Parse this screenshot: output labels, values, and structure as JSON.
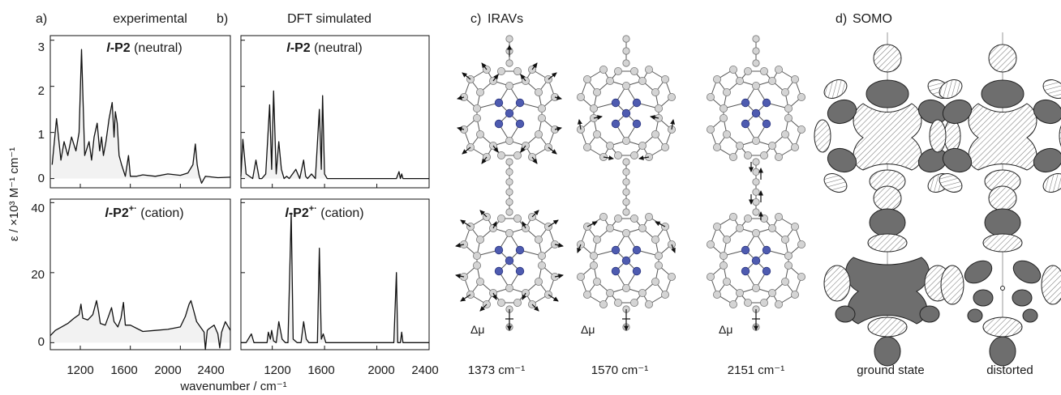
{
  "panels": {
    "a": {
      "letter": "a)",
      "title": "experimental"
    },
    "b": {
      "letter": "b)",
      "title": "DFT simulated"
    },
    "c": {
      "letter": "c)",
      "title": "IRAVs"
    },
    "d": {
      "letter": "d)",
      "title": "SOMO"
    }
  },
  "spectra": {
    "neutral_label": {
      "italic": "l",
      "bold": "-P2",
      "plain": " (neutral)"
    },
    "cation_label": {
      "italic": "l",
      "bold": "-P2",
      "sup": "+·",
      "plain": " (cation)"
    },
    "ylabel": "ε / ×10³ M⁻¹ cm⁻¹",
    "xlabel": "wavenumber / cm⁻¹",
    "xticks": [
      "1200",
      "1600",
      "2000",
      "2400"
    ],
    "yticks_top": [
      "0",
      "1",
      "2",
      "3"
    ],
    "yticks_bottom": [
      "0",
      "20",
      "40"
    ]
  },
  "modes": {
    "dipole_label": "Δμ",
    "freqs": [
      "1373 cm⁻¹",
      "1570 cm⁻¹",
      "2151 cm⁻¹"
    ]
  },
  "somo": {
    "labels": [
      "ground state",
      "distorted"
    ]
  },
  "chart_data": [
    {
      "type": "line",
      "title": "l-P2 (neutral)",
      "panel": "a) experimental",
      "xlim": [
        960,
        2400
      ],
      "ylim": [
        -0.2,
        3.1
      ],
      "series": [
        {
          "x": [
            975,
            1010,
            1045,
            1070,
            1100,
            1130,
            1165,
            1190,
            1210,
            1235,
            1270,
            1290,
            1310,
            1335,
            1355,
            1370,
            1385,
            1405,
            1430,
            1455,
            1470,
            1480,
            1495,
            1510,
            1530,
            1560,
            1585,
            1600,
            1650,
            1700,
            1800,
            1900,
            2000,
            2060,
            2100,
            2120,
            2135,
            2150,
            2170,
            2200,
            2300,
            2400
          ],
          "values": [
            0.3,
            1.3,
            0.4,
            0.8,
            0.5,
            0.9,
            0.6,
            1.0,
            2.8,
            0.5,
            0.8,
            0.4,
            0.9,
            1.2,
            0.6,
            0.9,
            0.5,
            0.8,
            1.3,
            1.65,
            0.9,
            1.45,
            1.2,
            0.5,
            0.3,
            0.05,
            0.5,
            0.05,
            0.05,
            0.08,
            0.05,
            0.1,
            0.07,
            0.12,
            0.3,
            0.75,
            0.3,
            0.07,
            -0.1,
            0.05,
            0.02,
            0.03
          ]
        }
      ]
    },
    {
      "type": "line",
      "title": "l-P2 (neutral)",
      "panel": "b) DFT simulated",
      "xlim": [
        960,
        2400
      ],
      "ylim": [
        -0.2,
        3.1
      ],
      "series": [
        {
          "x": [
            960,
            975,
            1000,
            1050,
            1075,
            1100,
            1120,
            1150,
            1180,
            1195,
            1210,
            1230,
            1250,
            1270,
            1290,
            1310,
            1330,
            1380,
            1410,
            1440,
            1455,
            1470,
            1500,
            1530,
            1560,
            1575,
            1585,
            1600,
            1620,
            1700,
            1800,
            2100,
            2150,
            2170,
            2180,
            2190,
            2200,
            2250,
            2400
          ],
          "values": [
            0.05,
            0.85,
            0.1,
            0.0,
            0.4,
            0.0,
            0.0,
            0.1,
            1.6,
            0.2,
            1.9,
            0.1,
            0.8,
            0.2,
            0.0,
            0.05,
            0.0,
            0.2,
            0.0,
            0.4,
            0.05,
            0.0,
            0.1,
            0.0,
            1.5,
            0.2,
            1.8,
            0.1,
            0.0,
            0.0,
            0.0,
            0.0,
            0.0,
            0.15,
            0.0,
            0.1,
            0.0,
            0.0,
            0.0
          ]
        }
      ]
    },
    {
      "type": "line",
      "title": "l-P2+· (cation)",
      "panel": "a) experimental",
      "xlim": [
        960,
        2400
      ],
      "ylim": [
        -2,
        41
      ],
      "series": [
        {
          "x": [
            960,
            1000,
            1050,
            1100,
            1150,
            1190,
            1205,
            1220,
            1260,
            1300,
            1330,
            1345,
            1360,
            1400,
            1430,
            1450,
            1470,
            1500,
            1525,
            1545,
            1560,
            1600,
            1700,
            1800,
            1900,
            2000,
            2040,
            2070,
            2085,
            2100,
            2130,
            2170,
            2190,
            2200,
            2215,
            2230,
            2270,
            2300,
            2315,
            2330,
            2360,
            2400
          ],
          "values": [
            2,
            3.5,
            4.5,
            5.5,
            7,
            8,
            11,
            7,
            6.5,
            8,
            12,
            9,
            5.5,
            5,
            8,
            10,
            6,
            4.5,
            7,
            11.5,
            5,
            5,
            3.2,
            3.5,
            3.8,
            4.5,
            7.5,
            11,
            12,
            10,
            6,
            4,
            3,
            -2,
            3.5,
            4,
            5,
            2.5,
            -1.5,
            3,
            6,
            3.5
          ]
        }
      ]
    },
    {
      "type": "line",
      "title": "l-P2+· (cation)",
      "panel": "b) DFT simulated",
      "xlim": [
        960,
        2400
      ],
      "ylim": [
        -2,
        41
      ],
      "series": [
        {
          "x": [
            960,
            1000,
            1040,
            1060,
            1100,
            1130,
            1160,
            1170,
            1185,
            1195,
            1210,
            1230,
            1250,
            1275,
            1300,
            1320,
            1345,
            1360,
            1390,
            1420,
            1440,
            1460,
            1480,
            1520,
            1545,
            1560,
            1575,
            1590,
            1610,
            1700,
            1900,
            2100,
            2130,
            2150,
            2160,
            2180,
            2190,
            2200,
            2250,
            2400
          ],
          "values": [
            0,
            0,
            2.5,
            0,
            0,
            0,
            0,
            3,
            1,
            3.5,
            0.5,
            0,
            6,
            1,
            0,
            0,
            37,
            1,
            0,
            0,
            6,
            1,
            0,
            0,
            0,
            27,
            1,
            2.5,
            0,
            0,
            0,
            0,
            0,
            20,
            0,
            0,
            3,
            0,
            0,
            0
          ]
        }
      ]
    }
  ]
}
